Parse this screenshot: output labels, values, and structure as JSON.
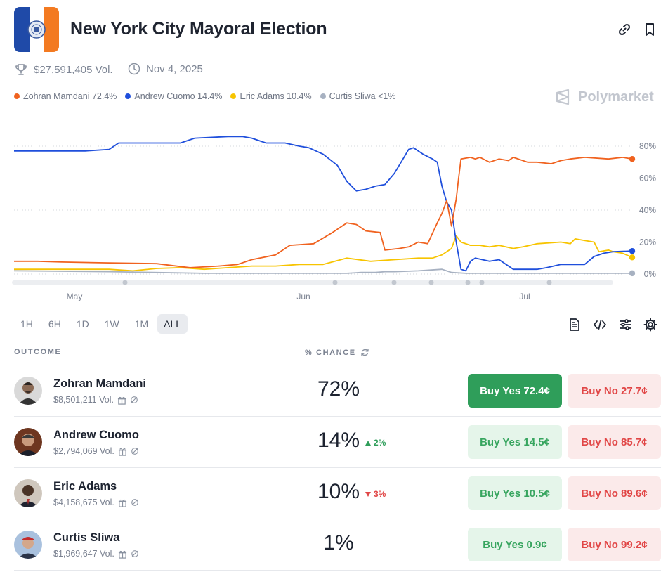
{
  "market": {
    "title": "New York City Mayoral Election",
    "volume": "$27,591,405 Vol.",
    "end_date": "Nov 4, 2025"
  },
  "brand": {
    "name": "Polymarket"
  },
  "legend": [
    {
      "label": "Zohran Mamdani 72.4%",
      "color": "#f0621f"
    },
    {
      "label": "Andrew Cuomo 14.4%",
      "color": "#1f4fdc"
    },
    {
      "label": "Eric Adams 10.4%",
      "color": "#f7c400"
    },
    {
      "label": "Curtis Sliwa <1%",
      "color": "#a7b1c1"
    }
  ],
  "chart_data": {
    "type": "line",
    "x_tick_labels": [
      "May",
      "Jun",
      "Jul"
    ],
    "y_tick_labels": [
      "80%",
      "60%",
      "40%",
      "20%",
      "0%"
    ],
    "ylim": [
      0,
      80
    ],
    "grid": true,
    "x_index_range": [
      0,
      100
    ],
    "series": [
      {
        "name": "Zohran Mamdani",
        "color": "#f0621f",
        "points": [
          [
            0,
            8
          ],
          [
            5,
            8
          ],
          [
            10,
            7.5
          ],
          [
            20,
            7
          ],
          [
            30,
            6.5
          ],
          [
            37,
            4
          ],
          [
            43,
            5
          ],
          [
            47,
            6
          ],
          [
            50,
            9
          ],
          [
            55,
            12
          ],
          [
            58,
            18
          ],
          [
            63,
            19
          ],
          [
            67,
            26
          ],
          [
            70,
            32
          ],
          [
            72,
            31
          ],
          [
            74,
            27
          ],
          [
            77,
            26
          ],
          [
            78,
            15
          ],
          [
            81,
            16
          ],
          [
            83,
            17
          ],
          [
            85,
            20
          ],
          [
            87,
            19
          ],
          [
            89,
            32
          ],
          [
            90,
            38
          ],
          [
            91,
            46
          ],
          [
            92,
            30
          ],
          [
            93,
            47
          ],
          [
            93.5,
            60
          ],
          [
            94,
            72
          ],
          [
            96,
            73
          ],
          [
            97,
            72
          ],
          [
            98,
            73
          ],
          [
            100,
            70
          ],
          [
            102,
            72
          ],
          [
            104,
            71
          ],
          [
            105,
            73
          ],
          [
            108,
            70
          ],
          [
            110,
            70
          ],
          [
            113,
            69
          ],
          [
            115,
            71
          ],
          [
            117,
            72
          ],
          [
            120,
            73
          ],
          [
            125,
            72
          ],
          [
            128,
            73
          ],
          [
            130,
            72
          ]
        ]
      },
      {
        "name": "Andrew Cuomo",
        "color": "#1f4fdc",
        "points": [
          [
            0,
            77
          ],
          [
            10,
            77
          ],
          [
            15,
            77
          ],
          [
            20,
            78
          ],
          [
            22,
            82
          ],
          [
            25,
            82
          ],
          [
            30,
            82
          ],
          [
            35,
            82
          ],
          [
            38,
            85
          ],
          [
            45,
            86
          ],
          [
            48,
            86
          ],
          [
            50,
            85
          ],
          [
            53,
            82
          ],
          [
            57,
            82
          ],
          [
            60,
            80
          ],
          [
            62,
            79
          ],
          [
            65,
            75
          ],
          [
            68,
            68
          ],
          [
            70,
            58
          ],
          [
            72,
            52
          ],
          [
            74,
            53
          ],
          [
            76,
            55
          ],
          [
            78,
            56
          ],
          [
            80,
            63
          ],
          [
            82,
            73
          ],
          [
            83,
            78
          ],
          [
            84,
            79
          ],
          [
            86,
            75
          ],
          [
            88,
            72
          ],
          [
            89,
            70
          ],
          [
            90,
            55
          ],
          [
            91,
            45
          ],
          [
            92,
            40
          ],
          [
            93,
            20
          ],
          [
            94,
            3
          ],
          [
            95,
            2
          ],
          [
            96,
            8
          ],
          [
            97,
            10
          ],
          [
            100,
            8
          ],
          [
            102,
            9
          ],
          [
            105,
            3
          ],
          [
            108,
            3
          ],
          [
            110,
            3
          ],
          [
            112,
            4
          ],
          [
            115,
            6
          ],
          [
            118,
            6
          ],
          [
            120,
            6
          ],
          [
            122,
            11
          ],
          [
            124,
            13
          ],
          [
            126,
            14
          ],
          [
            130,
            14.4
          ]
        ]
      },
      {
        "name": "Eric Adams",
        "color": "#f7c400",
        "points": [
          [
            0,
            3
          ],
          [
            10,
            3
          ],
          [
            20,
            3
          ],
          [
            25,
            2
          ],
          [
            30,
            3.5
          ],
          [
            35,
            4
          ],
          [
            40,
            3
          ],
          [
            45,
            4
          ],
          [
            50,
            5
          ],
          [
            55,
            5
          ],
          [
            60,
            6
          ],
          [
            65,
            6
          ],
          [
            70,
            10
          ],
          [
            75,
            8
          ],
          [
            80,
            9
          ],
          [
            85,
            10
          ],
          [
            88,
            10
          ],
          [
            90,
            12
          ],
          [
            92,
            16
          ],
          [
            93,
            24
          ],
          [
            94,
            20
          ],
          [
            96,
            18
          ],
          [
            98,
            18
          ],
          [
            100,
            17
          ],
          [
            102,
            18
          ],
          [
            105,
            16
          ],
          [
            107,
            17
          ],
          [
            110,
            19
          ],
          [
            115,
            20
          ],
          [
            117,
            19
          ],
          [
            118,
            22
          ],
          [
            120,
            21
          ],
          [
            122,
            20
          ],
          [
            123,
            14
          ],
          [
            125,
            15
          ],
          [
            126,
            14
          ],
          [
            128,
            13
          ],
          [
            130,
            10.4
          ]
        ]
      },
      {
        "name": "Curtis Sliwa",
        "color": "#a7b1c1",
        "points": [
          [
            0,
            2
          ],
          [
            20,
            1.5
          ],
          [
            40,
            0.5
          ],
          [
            60,
            0.5
          ],
          [
            70,
            0.5
          ],
          [
            73,
            1
          ],
          [
            76,
            1
          ],
          [
            78,
            1.5
          ],
          [
            80,
            1.5
          ],
          [
            85,
            2
          ],
          [
            90,
            3
          ],
          [
            92,
            1
          ],
          [
            95,
            0.5
          ],
          [
            100,
            0.5
          ],
          [
            110,
            0.5
          ],
          [
            120,
            0.5
          ],
          [
            130,
            0.5
          ]
        ]
      }
    ]
  },
  "time_range": {
    "options": [
      "1H",
      "6H",
      "1D",
      "1W",
      "1M",
      "ALL"
    ],
    "selected": "ALL"
  },
  "table": {
    "outcome_header": "OUTCOME",
    "chance_header": "% CHANCE",
    "rows": [
      {
        "name": "Zohran Mamdani",
        "volume": "$8,501,211 Vol.",
        "chance": "72%",
        "delta": "",
        "delta_dir": "",
        "buy_yes": "Buy Yes 72.4¢",
        "buy_no": "Buy No 27.7¢",
        "avatar_bg": "#6c6f75"
      },
      {
        "name": "Andrew Cuomo",
        "volume": "$2,794,069 Vol.",
        "chance": "14%",
        "delta": "2%",
        "delta_dir": "up",
        "buy_yes": "Buy Yes 14.5¢",
        "buy_no": "Buy No 85.7¢",
        "avatar_bg": "#7a3b21"
      },
      {
        "name": "Eric Adams",
        "volume": "$4,158,675 Vol.",
        "chance": "10%",
        "delta": "3%",
        "delta_dir": "down",
        "buy_yes": "Buy Yes 10.5¢",
        "buy_no": "Buy No 89.6¢",
        "avatar_bg": "#8d7a6a"
      },
      {
        "name": "Curtis Sliwa",
        "volume": "$1,969,647 Vol.",
        "chance": "1%",
        "delta": "",
        "delta_dir": "",
        "buy_yes": "Buy Yes 0.9¢",
        "buy_no": "Buy No 99.2¢",
        "avatar_bg": "#3e5a86"
      }
    ]
  }
}
